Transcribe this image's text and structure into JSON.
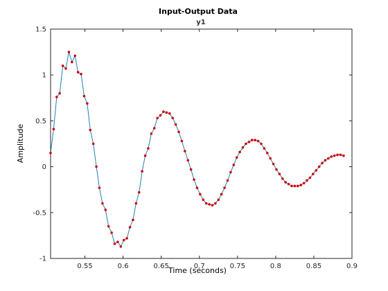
{
  "chart_data": {
    "type": "line",
    "title": "Input-Output Data",
    "subtitle": "y1",
    "xlabel": "Time (seconds)",
    "ylabel": "Amplitude",
    "xlim": [
      0.505,
      0.9
    ],
    "ylim": [
      -1,
      1.5
    ],
    "xticks": [
      0.55,
      0.6,
      0.65,
      0.7,
      0.75,
      0.8,
      0.85,
      0.9
    ],
    "xtick_labels": [
      "0.55",
      "0.6",
      "0.65",
      "0.7",
      "0.75",
      "0.8",
      "0.85",
      "0.9"
    ],
    "yticks": [
      -1,
      -0.5,
      0,
      0.5,
      1,
      1.5
    ],
    "ytick_labels": [
      "-1",
      "-0.5",
      "0",
      "0.5",
      "1",
      "1.5"
    ],
    "grid": false,
    "line_color": "#1f7fb6",
    "marker_color": "#d40000",
    "series": [
      {
        "x": [
          0.505,
          0.509,
          0.513,
          0.517,
          0.521,
          0.525,
          0.529,
          0.533,
          0.537,
          0.541,
          0.545,
          0.549,
          0.553,
          0.557,
          0.561,
          0.565,
          0.569,
          0.573,
          0.577,
          0.581,
          0.585,
          0.589,
          0.593,
          0.597,
          0.601,
          0.605,
          0.609,
          0.613,
          0.617,
          0.621,
          0.625,
          0.629,
          0.633,
          0.637,
          0.641,
          0.645,
          0.649,
          0.653,
          0.657,
          0.661,
          0.665,
          0.669,
          0.673,
          0.677,
          0.681,
          0.685,
          0.689,
          0.693,
          0.697,
          0.701,
          0.705,
          0.709,
          0.713,
          0.717,
          0.721,
          0.725,
          0.729,
          0.733,
          0.737,
          0.741,
          0.745,
          0.749,
          0.753,
          0.757,
          0.761,
          0.765,
          0.769,
          0.773,
          0.777,
          0.781,
          0.785,
          0.789,
          0.793,
          0.797,
          0.801,
          0.805,
          0.809,
          0.813,
          0.817,
          0.821,
          0.825,
          0.829,
          0.833,
          0.837,
          0.841,
          0.845,
          0.849,
          0.853,
          0.857,
          0.861,
          0.865,
          0.869,
          0.873,
          0.877,
          0.881,
          0.885,
          0.889
        ],
        "y": [
          0.15,
          0.41,
          0.76,
          0.8,
          1.1,
          1.07,
          1.25,
          1.14,
          1.21,
          1.03,
          1.01,
          0.77,
          0.69,
          0.4,
          0.25,
          0.0,
          -0.23,
          -0.4,
          -0.47,
          -0.65,
          -0.72,
          -0.84,
          -0.82,
          -0.87,
          -0.8,
          -0.78,
          -0.66,
          -0.58,
          -0.4,
          -0.28,
          -0.05,
          0.12,
          0.2,
          0.36,
          0.42,
          0.53,
          0.56,
          0.6,
          0.59,
          0.58,
          0.53,
          0.46,
          0.38,
          0.28,
          0.17,
          0.07,
          -0.03,
          -0.14,
          -0.23,
          -0.3,
          -0.36,
          -0.4,
          -0.41,
          -0.42,
          -0.4,
          -0.36,
          -0.3,
          -0.23,
          -0.15,
          -0.06,
          0.02,
          0.1,
          0.16,
          0.21,
          0.25,
          0.27,
          0.29,
          0.29,
          0.28,
          0.25,
          0.2,
          0.15,
          0.09,
          0.03,
          -0.03,
          -0.08,
          -0.13,
          -0.17,
          -0.19,
          -0.21,
          -0.21,
          -0.21,
          -0.2,
          -0.18,
          -0.15,
          -0.12,
          -0.08,
          -0.04,
          0.0,
          0.04,
          0.07,
          0.09,
          0.11,
          0.12,
          0.13,
          0.13,
          0.12
        ]
      }
    ]
  }
}
